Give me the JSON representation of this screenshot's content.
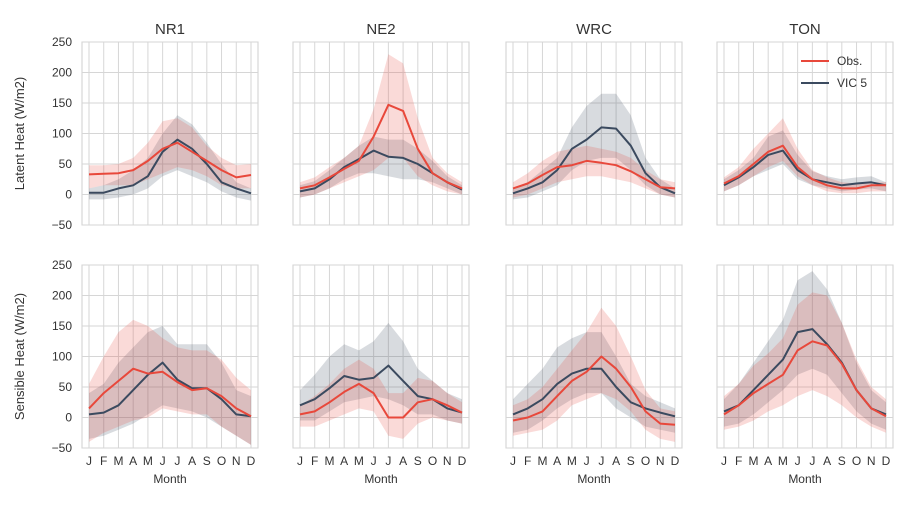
{
  "chart_data": {
    "type": "line",
    "ylabels": [
      "Latent Heat (W/m2)",
      "Sensible Heat (W/m2)"
    ],
    "xlabel": "Month",
    "xticks": [
      "J",
      "F",
      "M",
      "A",
      "M",
      "J",
      "J",
      "A",
      "S",
      "O",
      "N",
      "D"
    ],
    "yticks": [
      -50,
      0,
      50,
      100,
      150,
      200,
      250
    ],
    "ylim": [
      -50,
      250
    ],
    "legend": {
      "position": "top-right",
      "entries": [
        "Obs.",
        "VIC 5"
      ]
    },
    "colors": {
      "obs": "#e8483b",
      "vic": "#3b4a5f"
    },
    "grid": true,
    "panels": [
      {
        "title": "NR1",
        "row": 0,
        "col": 0,
        "obs": {
          "values": [
            33,
            34,
            35,
            40,
            55,
            75,
            85,
            70,
            55,
            40,
            28,
            32
          ],
          "lower": [
            10,
            15,
            15,
            15,
            25,
            35,
            45,
            40,
            30,
            15,
            10,
            10
          ],
          "upper": [
            48,
            48,
            50,
            60,
            85,
            120,
            125,
            110,
            80,
            60,
            48,
            50
          ]
        },
        "vic": {
          "values": [
            3,
            3,
            10,
            15,
            30,
            70,
            90,
            75,
            50,
            20,
            10,
            2
          ],
          "lower": [
            -8,
            -8,
            -5,
            0,
            10,
            30,
            40,
            30,
            20,
            5,
            -5,
            -10
          ],
          "upper": [
            10,
            15,
            25,
            40,
            60,
            100,
            130,
            115,
            85,
            50,
            20,
            10
          ]
        }
      },
      {
        "title": "NE2",
        "row": 0,
        "col": 1,
        "obs": {
          "values": [
            10,
            15,
            28,
            42,
            55,
            95,
            147,
            137,
            75,
            35,
            20,
            10
          ],
          "lower": [
            -5,
            0,
            10,
            20,
            30,
            40,
            60,
            60,
            30,
            15,
            5,
            0
          ],
          "upper": [
            20,
            28,
            45,
            60,
            80,
            140,
            230,
            215,
            125,
            60,
            35,
            20
          ]
        },
        "vic": {
          "values": [
            5,
            10,
            25,
            45,
            58,
            72,
            62,
            60,
            50,
            35,
            20,
            8
          ],
          "lower": [
            -5,
            0,
            10,
            25,
            35,
            35,
            30,
            25,
            25,
            20,
            10,
            0
          ],
          "upper": [
            15,
            22,
            40,
            60,
            80,
            95,
            90,
            90,
            75,
            55,
            30,
            15
          ]
        }
      },
      {
        "title": "WRC",
        "row": 0,
        "col": 2,
        "obs": {
          "values": [
            10,
            18,
            32,
            45,
            48,
            55,
            52,
            48,
            38,
            25,
            12,
            10
          ],
          "lower": [
            -5,
            0,
            10,
            20,
            25,
            30,
            30,
            25,
            20,
            10,
            0,
            -5
          ],
          "upper": [
            20,
            35,
            55,
            70,
            75,
            80,
            75,
            70,
            60,
            40,
            25,
            20
          ]
        },
        "vic": {
          "values": [
            2,
            10,
            20,
            40,
            75,
            90,
            110,
            108,
            80,
            35,
            12,
            2
          ],
          "lower": [
            -8,
            -5,
            5,
            15,
            40,
            55,
            60,
            60,
            40,
            15,
            0,
            -5
          ],
          "upper": [
            10,
            20,
            40,
            60,
            110,
            145,
            165,
            165,
            130,
            60,
            25,
            10
          ]
        }
      },
      {
        "title": "TON",
        "row": 0,
        "col": 3,
        "obs": {
          "values": [
            18,
            30,
            50,
            70,
            80,
            45,
            25,
            15,
            10,
            10,
            15,
            15
          ],
          "lower": [
            5,
            15,
            30,
            45,
            55,
            30,
            15,
            5,
            2,
            2,
            5,
            5
          ],
          "upper": [
            28,
            45,
            75,
            100,
            125,
            75,
            40,
            28,
            20,
            18,
            20,
            20
          ]
        },
        "vic": {
          "values": [
            15,
            28,
            45,
            65,
            72,
            40,
            25,
            20,
            15,
            18,
            20,
            15
          ],
          "lower": [
            5,
            15,
            30,
            40,
            50,
            25,
            15,
            10,
            5,
            8,
            10,
            5
          ],
          "upper": [
            25,
            40,
            60,
            95,
            105,
            65,
            38,
            30,
            25,
            28,
            30,
            20
          ]
        }
      },
      {
        "title": "",
        "row": 1,
        "col": 0,
        "obs": {
          "values": [
            15,
            40,
            60,
            80,
            72,
            75,
            58,
            45,
            48,
            35,
            15,
            2
          ],
          "lower": [
            -40,
            -25,
            -15,
            -5,
            0,
            15,
            10,
            5,
            5,
            -15,
            -30,
            -45
          ],
          "upper": [
            55,
            100,
            140,
            160,
            150,
            130,
            115,
            110,
            110,
            95,
            65,
            45
          ]
        },
        "vic": {
          "values": [
            5,
            8,
            20,
            45,
            70,
            90,
            62,
            48,
            48,
            30,
            5,
            2
          ],
          "lower": [
            -35,
            -30,
            -20,
            -10,
            5,
            20,
            15,
            10,
            0,
            -15,
            -30,
            -45
          ],
          "upper": [
            40,
            55,
            90,
            115,
            140,
            150,
            120,
            120,
            120,
            90,
            45,
            35
          ]
        }
      },
      {
        "title": "",
        "row": 1,
        "col": 1,
        "obs": {
          "values": [
            5,
            10,
            25,
            42,
            55,
            40,
            0,
            0,
            25,
            30,
            20,
            8
          ],
          "lower": [
            -15,
            -15,
            -5,
            5,
            15,
            10,
            -30,
            -35,
            -10,
            0,
            -5,
            -10
          ],
          "upper": [
            20,
            35,
            55,
            80,
            95,
            80,
            40,
            40,
            65,
            60,
            40,
            25
          ]
        },
        "vic": {
          "values": [
            20,
            30,
            48,
            68,
            62,
            65,
            85,
            60,
            35,
            30,
            15,
            8
          ],
          "lower": [
            -5,
            -5,
            10,
            25,
            30,
            35,
            30,
            20,
            5,
            5,
            -5,
            -10
          ],
          "upper": [
            45,
            70,
            100,
            120,
            110,
            125,
            155,
            125,
            80,
            60,
            40,
            30
          ]
        }
      },
      {
        "title": "",
        "row": 1,
        "col": 2,
        "obs": {
          "values": [
            -5,
            0,
            10,
            35,
            60,
            75,
            100,
            80,
            50,
            10,
            -10,
            -12
          ],
          "lower": [
            -30,
            -25,
            -20,
            -5,
            20,
            30,
            40,
            30,
            10,
            -20,
            -35,
            -40
          ],
          "upper": [
            20,
            30,
            50,
            80,
            110,
            140,
            180,
            150,
            100,
            45,
            15,
            10
          ]
        },
        "vic": {
          "values": [
            5,
            15,
            30,
            55,
            72,
            80,
            80,
            50,
            25,
            15,
            8,
            2
          ],
          "lower": [
            -25,
            -20,
            -5,
            15,
            30,
            40,
            40,
            15,
            0,
            -15,
            -20,
            -25
          ],
          "upper": [
            30,
            55,
            80,
            115,
            130,
            140,
            140,
            100,
            55,
            35,
            25,
            15
          ]
        }
      },
      {
        "title": "",
        "row": 1,
        "col": 3,
        "obs": {
          "values": [
            5,
            20,
            40,
            55,
            70,
            110,
            125,
            118,
            88,
            45,
            15,
            2
          ],
          "lower": [
            -20,
            -15,
            -5,
            10,
            20,
            35,
            45,
            35,
            20,
            0,
            -15,
            -25
          ],
          "upper": [
            35,
            55,
            85,
            105,
            130,
            185,
            205,
            200,
            155,
            95,
            50,
            30
          ]
        },
        "vic": {
          "values": [
            10,
            20,
            45,
            70,
            95,
            140,
            145,
            120,
            90,
            45,
            15,
            5
          ],
          "lower": [
            -15,
            -10,
            5,
            25,
            45,
            70,
            80,
            70,
            40,
            10,
            -10,
            -20
          ],
          "upper": [
            30,
            55,
            90,
            125,
            160,
            225,
            240,
            210,
            155,
            90,
            45,
            25
          ]
        }
      }
    ]
  }
}
